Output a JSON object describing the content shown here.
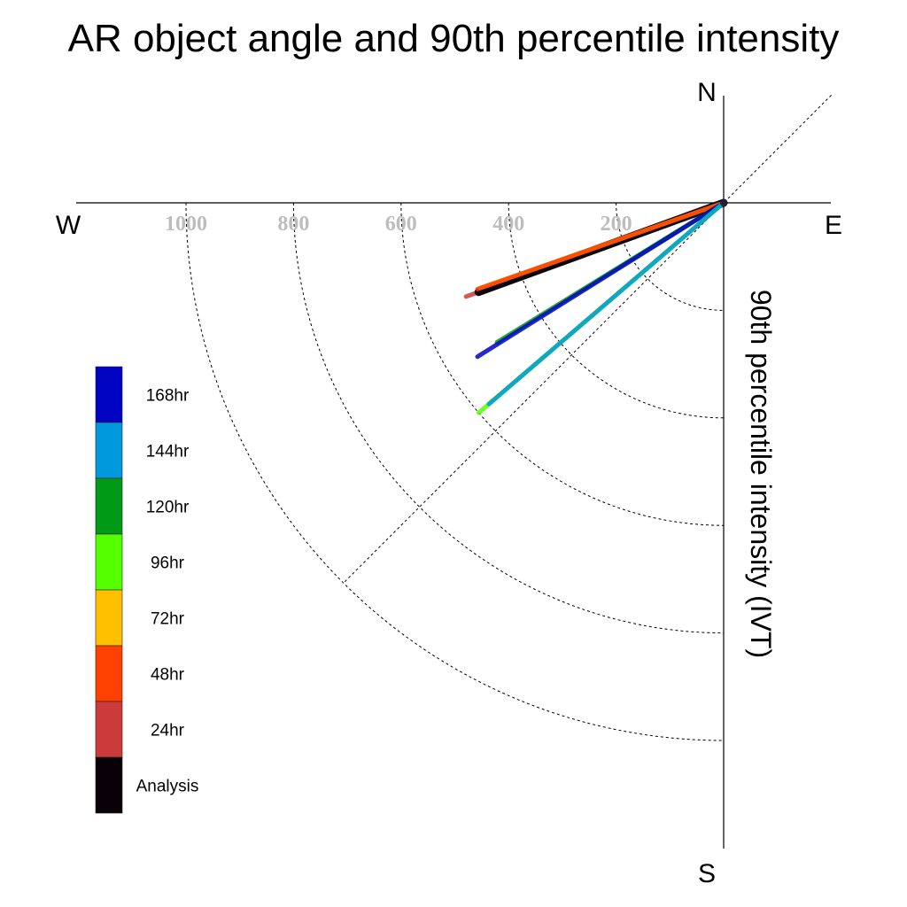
{
  "chart_data": {
    "type": "polar-vector",
    "title": "AR object angle and 90th percentile intensity",
    "radial_label": "90th percentile intensity (IVT)",
    "compass": {
      "north": "N",
      "south": "S",
      "east": "E",
      "west": "W"
    },
    "radial_ticks": [
      200,
      400,
      600,
      800,
      1000
    ],
    "radial_tick_labels": [
      "200",
      "400",
      "600",
      "800",
      "1000"
    ],
    "rmax": 1200,
    "diagonal_reference_deg": 45,
    "series": [
      {
        "name": "24hr",
        "color": "#cc3b3b",
        "angle_deg": 20.0,
        "intensity": 510
      },
      {
        "name": "Analysis",
        "color": "#0a0008",
        "angle_deg": 20.0,
        "intensity": 485
      },
      {
        "name": "72hr",
        "color": "#ffc000",
        "angle_deg": 19.3,
        "intensity": 480
      },
      {
        "name": "48hr",
        "color": "#ff4000",
        "angle_deg": 19.3,
        "intensity": 485
      },
      {
        "name": "120hr",
        "color": "#009a16",
        "angle_deg": 31.6,
        "intensity": 495
      },
      {
        "name": "168hr",
        "color": "#0004c2",
        "angle_deg": 32.0,
        "intensity": 540
      },
      {
        "name": "96hr",
        "color": "#55ff00",
        "angle_deg": 40.6,
        "intensity": 600
      },
      {
        "name": "144hr",
        "color": "#0099dd",
        "angle_deg": 40.6,
        "intensity": 575
      }
    ],
    "legend": [
      {
        "label": "168hr",
        "color": "#0004c2"
      },
      {
        "label": "144hr",
        "color": "#0099dd"
      },
      {
        "label": "120hr",
        "color": "#009a16"
      },
      {
        "label": "96hr",
        "color": "#55ff00"
      },
      {
        "label": "72hr",
        "color": "#ffc000"
      },
      {
        "label": "48hr",
        "color": "#ff4000"
      },
      {
        "label": "24hr",
        "color": "#cc3b3b"
      },
      {
        "label": "Analysis",
        "color": "#0a0008"
      }
    ]
  }
}
